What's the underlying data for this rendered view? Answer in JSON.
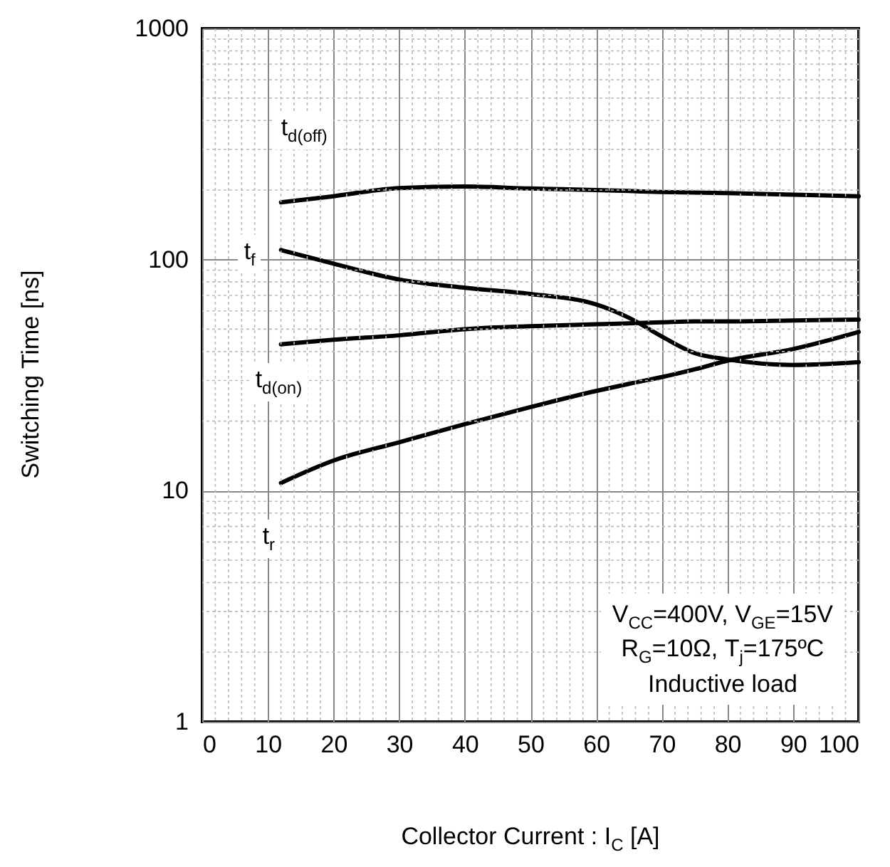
{
  "chart_data": {
    "type": "line",
    "xlabel": "Collector Current : I$_{C}$ [A]",
    "ylabel": "Switching Time [ns]",
    "x": [
      12,
      20,
      30,
      40,
      50,
      60,
      65,
      70,
      75,
      80,
      90,
      100
    ],
    "series": [
      {
        "name": "t$_{d(off)}$",
        "color": "#000000",
        "values": [
          177,
          188,
          204,
          207,
          203,
          200,
          198,
          196,
          195,
          194,
          191,
          188
        ]
      },
      {
        "name": "t$_{f}$",
        "color": "#000000",
        "values": [
          110,
          96,
          82,
          75.5,
          71,
          64,
          56,
          46.5,
          39.4,
          37,
          35,
          36
        ]
      },
      {
        "name": "t$_{d(on)}$",
        "color": "#000000",
        "values": [
          43,
          45,
          47,
          50,
          51.5,
          52.5,
          53,
          53.5,
          54,
          54,
          54.5,
          55
        ]
      },
      {
        "name": "t$_{r}$",
        "color": "#000000",
        "values": [
          10.8,
          13.5,
          16.2,
          19.4,
          23,
          27,
          29,
          31,
          33.5,
          36.5,
          41,
          48.6
        ]
      }
    ],
    "annotations": [
      "V$_{CC}$=400V, V$_{GE}$=15V",
      "R$_{G}$=10Ω, T$_{j}$=175ºC",
      "Inductive load"
    ],
    "xlim": [
      0,
      100
    ],
    "xticks": [
      0,
      10,
      20,
      30,
      40,
      50,
      60,
      70,
      80,
      90,
      100
    ],
    "ylim": [
      1,
      1000
    ],
    "yticks": [
      1,
      10,
      100,
      1000
    ],
    "log": "y",
    "grid": true,
    "line_style": "solid",
    "marker": "none"
  }
}
